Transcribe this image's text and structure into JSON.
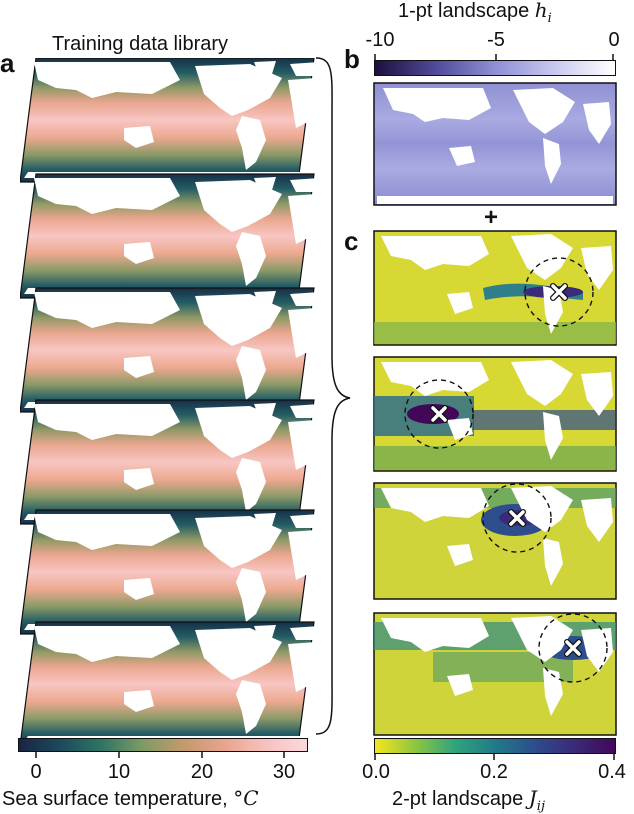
{
  "panel_a": {
    "letter": "a",
    "title": "Training data library",
    "colorbar": {
      "ticks": [
        "0",
        "10",
        "20",
        "30"
      ],
      "label": "Sea surface temperature, ",
      "unit": "°C",
      "colors": [
        "#1a2445",
        "#1d4a5a",
        "#2e7565",
        "#7e9a63",
        "#c39a6a",
        "#e9a48e",
        "#f7c2bf",
        "#fbd7dd"
      ]
    },
    "maps": 6
  },
  "panel_b": {
    "letter": "b",
    "title": "1-pt landscape ",
    "title_symbol": "h",
    "title_sub": "i",
    "colorbar": {
      "ticks": [
        "-10",
        "-5",
        "0"
      ],
      "colors": [
        "#1d0f3d",
        "#4f4a99",
        "#8e8fd4",
        "#c9c9f0",
        "#ffffff"
      ]
    }
  },
  "plus": "+",
  "panel_c": {
    "letter": "c",
    "colorbar": {
      "ticks": [
        "0.0",
        "0.2",
        "0.4"
      ],
      "label": "2-pt landscape ",
      "label_symbol": "J",
      "label_sub": "ij",
      "colors": [
        "#f4e61f",
        "#8ec63f",
        "#2fa47c",
        "#217a8b",
        "#2d4d8d",
        "#3a2a78",
        "#43075a"
      ]
    },
    "maps": 4
  }
}
